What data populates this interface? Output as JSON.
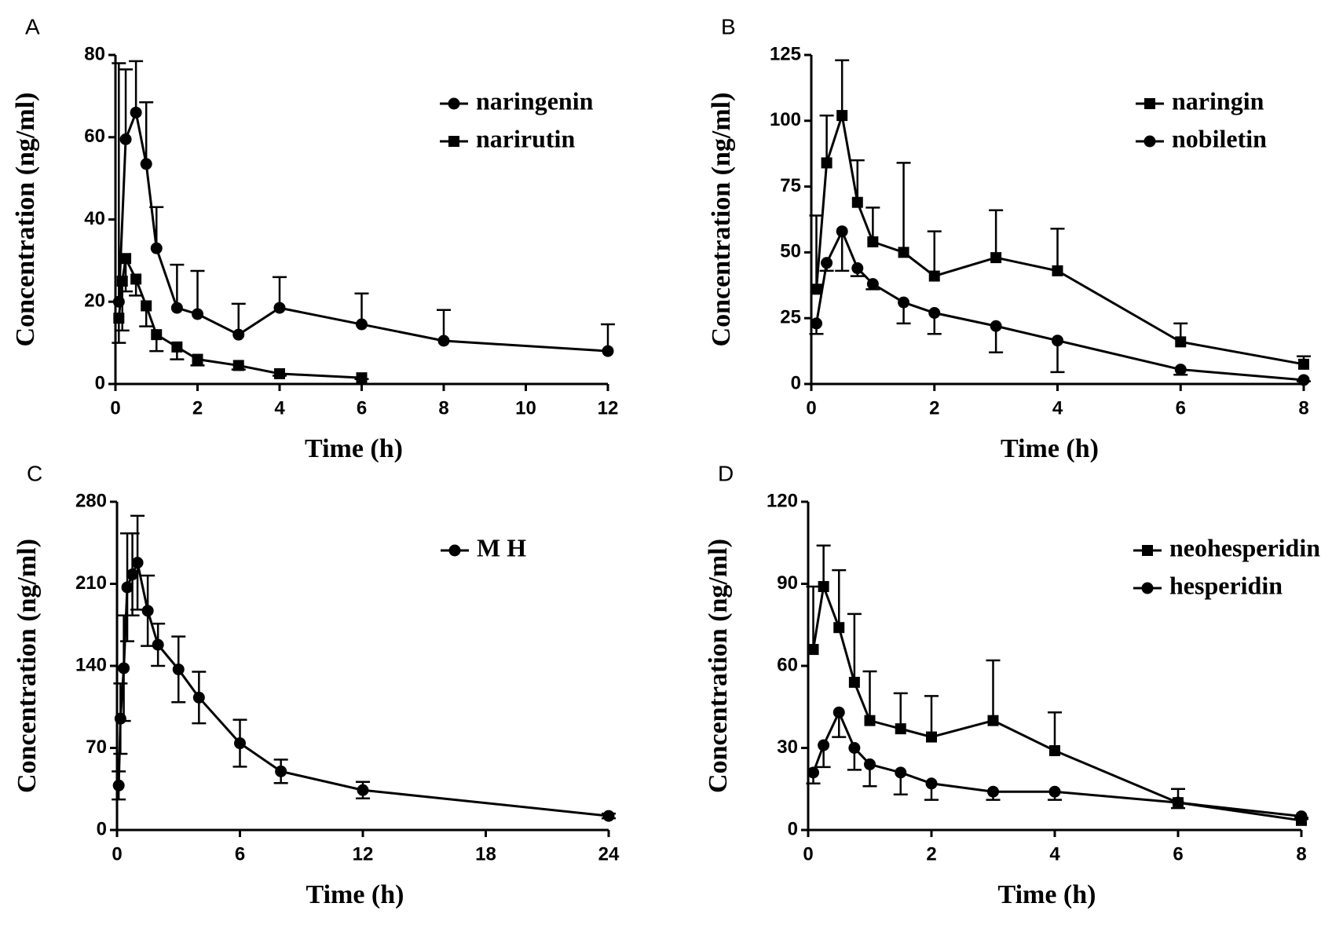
{
  "chart_data": [
    {
      "type": "line",
      "label": "A",
      "xlabel": "Time (h)",
      "ylabel": "Concentration (ng/ml)",
      "xlim": [
        0,
        12
      ],
      "xticks": [
        0,
        2,
        4,
        6,
        8,
        10,
        12
      ],
      "ylim": [
        0,
        80
      ],
      "yticks": [
        0,
        20,
        40,
        60,
        80
      ],
      "legend": "upper right",
      "series": [
        {
          "name": "naringenin",
          "color": "#000000",
          "marker": "circle",
          "error_direction": "up",
          "x": [
            0.083,
            0.25,
            0.5,
            0.75,
            1,
            1.5,
            2,
            3,
            4,
            6,
            8,
            12
          ],
          "values": [
            20,
            59.5,
            66,
            53.5,
            33,
            18.5,
            17,
            12,
            18.5,
            14.5,
            10.5,
            8
          ],
          "errors": [
            58,
            17,
            12.5,
            15,
            10,
            10.5,
            10.5,
            7.5,
            7.5,
            7.5,
            7.5,
            6.5
          ]
        },
        {
          "name": "narirutin",
          "color": "#000000",
          "marker": "square",
          "error_direction": "down",
          "x": [
            0.083,
            0.167,
            0.25,
            0.5,
            0.75,
            1,
            1.5,
            2,
            3,
            4,
            6
          ],
          "values": [
            16,
            25,
            30.5,
            25.5,
            19,
            12,
            9,
            6,
            4.5,
            2.5,
            1.5
          ],
          "errors": [
            6,
            12,
            8,
            4,
            5,
            4,
            3,
            1.5,
            1,
            0.5,
            0.3
          ]
        }
      ]
    },
    {
      "type": "line",
      "label": "B",
      "xlabel": "Time (h)",
      "ylabel": "Concentration (ng/ml)",
      "xlim": [
        0,
        8
      ],
      "xticks": [
        0,
        2,
        4,
        6,
        8
      ],
      "ylim": [
        0,
        125
      ],
      "yticks": [
        0,
        25,
        50,
        75,
        100,
        125
      ],
      "legend": "upper right",
      "series": [
        {
          "name": "naringin",
          "color": "#000000",
          "marker": "square",
          "error_direction": "up",
          "x": [
            0.083,
            0.25,
            0.5,
            0.75,
            1,
            1.5,
            2,
            3,
            4,
            6,
            8
          ],
          "values": [
            36,
            84,
            102,
            69,
            54,
            50,
            41,
            48,
            43,
            16,
            7.5
          ],
          "errors": [
            28,
            18,
            21,
            16,
            13,
            34,
            17,
            18,
            16,
            7,
            3
          ]
        },
        {
          "name": "nobiletin",
          "color": "#000000",
          "marker": "circle",
          "error_direction": "down",
          "x": [
            0.083,
            0.25,
            0.5,
            0.75,
            1,
            1.5,
            2,
            3,
            4,
            6,
            8
          ],
          "values": [
            23,
            46,
            58,
            44,
            38,
            31,
            27,
            22,
            16.5,
            5.5,
            1.5
          ],
          "errors": [
            4,
            3,
            15,
            3,
            2,
            8,
            8,
            10,
            12,
            2,
            0.5
          ]
        }
      ]
    },
    {
      "type": "line",
      "label": "C",
      "xlabel": "Time (h)",
      "ylabel": "Concentration (ng/ml)",
      "xlim": [
        0,
        24
      ],
      "xticks": [
        0,
        6,
        12,
        18,
        24
      ],
      "ylim": [
        0,
        280
      ],
      "yticks": [
        0,
        70,
        140,
        210,
        280
      ],
      "legend": "upper right",
      "series": [
        {
          "name": "M H",
          "color": "#000000",
          "marker": "circle",
          "error_direction": "both",
          "x": [
            0.083,
            0.167,
            0.33,
            0.5,
            0.75,
            1,
            1.5,
            2,
            3,
            4,
            6,
            8,
            12,
            24
          ],
          "values": [
            38,
            95,
            138,
            207,
            218,
            228,
            187,
            158,
            137,
            113,
            74,
            50,
            34,
            12
          ],
          "errors": [
            12,
            30,
            45,
            46,
            35,
            40,
            30,
            18,
            28,
            22,
            20,
            10,
            7,
            2
          ]
        }
      ]
    },
    {
      "type": "line",
      "label": "D",
      "xlabel": "Time (h)",
      "ylabel": "Concentration (ng/ml)",
      "xlim": [
        0,
        8
      ],
      "xticks": [
        0,
        2,
        4,
        6,
        8
      ],
      "ylim": [
        0,
        120
      ],
      "yticks": [
        0,
        30,
        60,
        90,
        120
      ],
      "legend": "upper right",
      "series": [
        {
          "name": "neohesperidin",
          "color": "#000000",
          "marker": "square",
          "error_direction": "up",
          "x": [
            0.083,
            0.25,
            0.5,
            0.75,
            1,
            1.5,
            2,
            3,
            4,
            6,
            8
          ],
          "values": [
            66,
            89,
            74,
            54,
            40,
            37,
            34,
            40,
            29,
            10,
            3.5
          ],
          "errors": [
            23,
            15,
            21,
            25,
            18,
            13,
            15,
            22,
            14,
            5,
            1
          ]
        },
        {
          "name": "hesperidin",
          "color": "#000000",
          "marker": "circle",
          "error_direction": "down",
          "x": [
            0.083,
            0.25,
            0.5,
            0.75,
            1,
            1.5,
            2,
            3,
            4,
            6,
            8
          ],
          "values": [
            21,
            31,
            43,
            30,
            24,
            21,
            17,
            14,
            14,
            10,
            5
          ],
          "errors": [
            4,
            8,
            9,
            8,
            8,
            8,
            6,
            3,
            3,
            2,
            1
          ]
        }
      ]
    }
  ]
}
